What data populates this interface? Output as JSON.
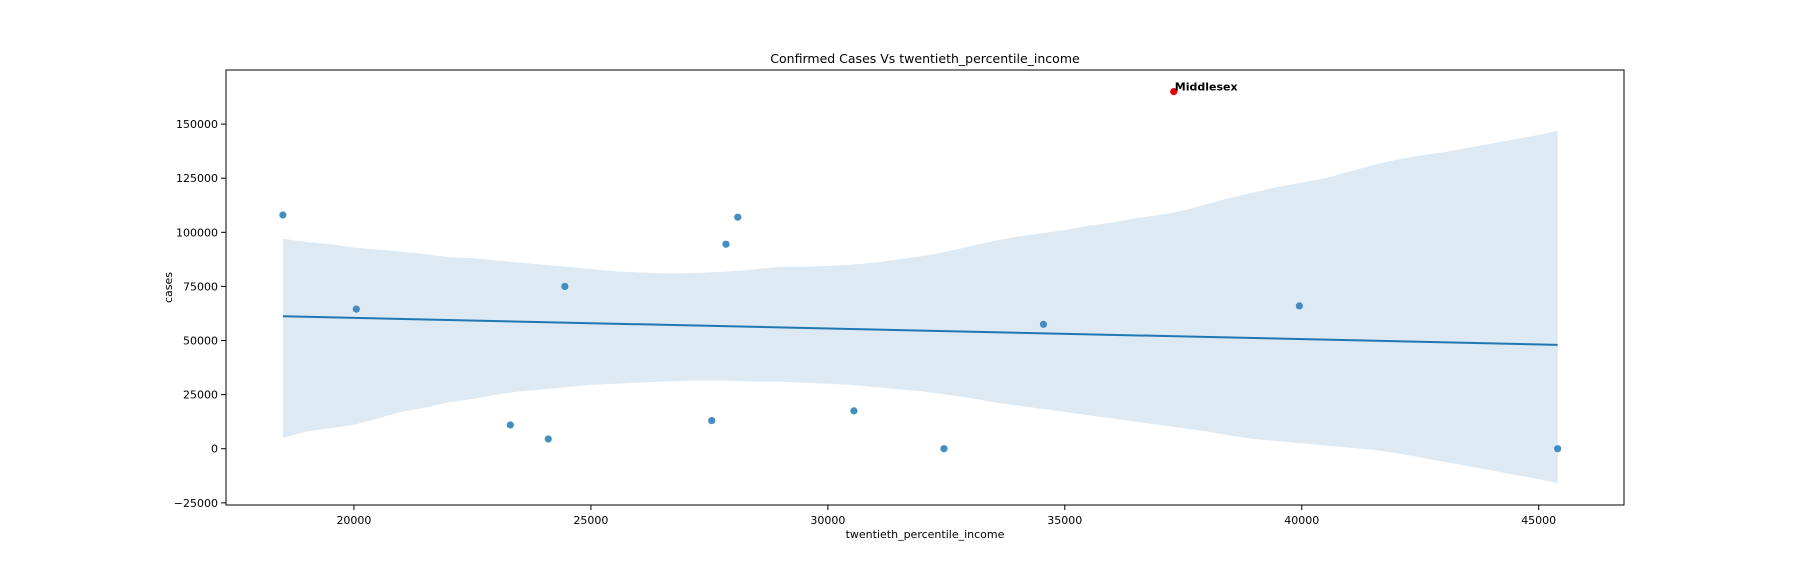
{
  "chart_data": {
    "type": "scatter",
    "title": "Confirmed Cases Vs twentieth_percentile_income",
    "xlabel": "twentieth_percentile_income",
    "ylabel": "cases",
    "xlim": [
      17300,
      46800
    ],
    "ylim": [
      -26000,
      175000
    ],
    "xticks": [
      20000,
      25000,
      30000,
      35000,
      40000,
      45000
    ],
    "yticks": [
      -25000,
      0,
      25000,
      50000,
      75000,
      100000,
      125000,
      150000
    ],
    "grid": false,
    "point_color": "#3a87bd",
    "line_color": "#1f77b4",
    "band_color": "#dde9f3",
    "highlight_color": "#e8000b",
    "points": [
      {
        "x": 18500,
        "y": 108000
      },
      {
        "x": 20050,
        "y": 64500
      },
      {
        "x": 23300,
        "y": 11000
      },
      {
        "x": 24100,
        "y": 4500
      },
      {
        "x": 24450,
        "y": 75000
      },
      {
        "x": 27550,
        "y": 13000
      },
      {
        "x": 27850,
        "y": 94500
      },
      {
        "x": 28100,
        "y": 107000
      },
      {
        "x": 30550,
        "y": 17500
      },
      {
        "x": 32450,
        "y": 0
      },
      {
        "x": 34550,
        "y": 57500
      },
      {
        "x": 39950,
        "y": 66000
      },
      {
        "x": 45400,
        "y": 0
      }
    ],
    "highlight": {
      "x": 37300,
      "y": 165000,
      "label": "Middlesex"
    },
    "regression": {
      "x": [
        18500,
        45400
      ],
      "y": [
        61200,
        48000
      ]
    },
    "confidence_band": {
      "x": [
        18500,
        19000,
        19500,
        20000,
        20500,
        21000,
        21500,
        22000,
        22500,
        23000,
        23500,
        24000,
        24500,
        25000,
        25500,
        26000,
        26500,
        27000,
        27500,
        28000,
        28500,
        29000,
        29500,
        30000,
        30500,
        31000,
        31500,
        32000,
        32500,
        33000,
        33500,
        34000,
        34500,
        35000,
        35500,
        36000,
        36500,
        37000,
        37500,
        38000,
        38500,
        39000,
        39500,
        40000,
        40500,
        41000,
        41500,
        42000,
        42500,
        43000,
        43500,
        44000,
        44500,
        45000,
        45400
      ],
      "upper": [
        97000,
        95500,
        94500,
        93000,
        92000,
        91000,
        90000,
        88500,
        88000,
        87000,
        86000,
        85000,
        84000,
        83000,
        82000,
        81500,
        81000,
        81000,
        81500,
        82000,
        83000,
        84000,
        84000,
        84500,
        85000,
        86000,
        87500,
        89000,
        91000,
        93500,
        96000,
        98000,
        99500,
        101000,
        103000,
        104500,
        106500,
        108000,
        110000,
        113000,
        116000,
        118500,
        121000,
        123000,
        125000,
        128000,
        131000,
        133500,
        135500,
        137000,
        139000,
        141000,
        143000,
        145000,
        147000
      ],
      "lower": [
        5000,
        8000,
        9500,
        11000,
        14000,
        17000,
        19000,
        21500,
        23000,
        25000,
        26500,
        27500,
        28500,
        29500,
        30000,
        30500,
        31000,
        31500,
        31500,
        31500,
        31000,
        31000,
        30500,
        30000,
        29500,
        28500,
        27500,
        26500,
        25000,
        23500,
        21500,
        20000,
        18500,
        17000,
        15500,
        14000,
        12500,
        11000,
        9500,
        8000,
        6000,
        4500,
        3500,
        2500,
        1500,
        500,
        -500,
        -2000,
        -4000,
        -6000,
        -8000,
        -10000,
        -12000,
        -14000,
        -16000
      ]
    }
  }
}
